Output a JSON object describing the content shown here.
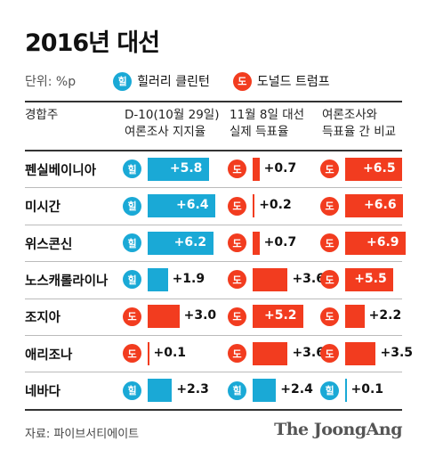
{
  "title": "2016년 대선",
  "unit_label": "단위: %p",
  "legend": [
    {
      "badge": "힐",
      "label": "힐러리 클린턴",
      "color": "#1aa9d6"
    },
    {
      "badge": "도",
      "label": "도널드 트럼프",
      "color": "#f23c1f"
    }
  ],
  "row_header": "경합주",
  "column_headers": [
    "D-10(10월 29일)\n여론조사 지지율",
    "11월 8일 대선\n실제 득표율",
    "여론조사와\n득표율 간 비교"
  ],
  "source": "자료: 파이브서티에이트",
  "logo": "The JoongAng",
  "colors": {
    "clinton": "#1aa9d6",
    "trump": "#f23c1f"
  },
  "chart_data": {
    "type": "table",
    "rows": [
      {
        "state": "펜실베이니아",
        "cells": [
          {
            "leader": "힐",
            "value": 5.8,
            "label": "+5.8"
          },
          {
            "leader": "도",
            "value": 0.7,
            "label": "+0.7"
          },
          {
            "leader": "도",
            "value": 6.5,
            "label": "+6.5"
          }
        ]
      },
      {
        "state": "미시간",
        "cells": [
          {
            "leader": "힐",
            "value": 6.4,
            "label": "+6.4"
          },
          {
            "leader": "도",
            "value": 0.2,
            "label": "+0.2"
          },
          {
            "leader": "도",
            "value": 6.6,
            "label": "+6.6"
          }
        ]
      },
      {
        "state": "위스콘신",
        "cells": [
          {
            "leader": "힐",
            "value": 6.2,
            "label": "+6.2"
          },
          {
            "leader": "도",
            "value": 0.7,
            "label": "+0.7"
          },
          {
            "leader": "도",
            "value": 6.9,
            "label": "+6.9"
          }
        ]
      },
      {
        "state": "노스캐롤라이나",
        "cells": [
          {
            "leader": "힐",
            "value": 1.9,
            "label": "+1.9"
          },
          {
            "leader": "도",
            "value": 3.6,
            "label": "+3.6"
          },
          {
            "leader": "도",
            "value": 5.5,
            "label": "+5.5"
          }
        ]
      },
      {
        "state": "조지아",
        "cells": [
          {
            "leader": "도",
            "value": 3.0,
            "label": "+3.0"
          },
          {
            "leader": "도",
            "value": 5.2,
            "label": "+5.2"
          },
          {
            "leader": "도",
            "value": 2.2,
            "label": "+2.2"
          }
        ]
      },
      {
        "state": "애리조나",
        "cells": [
          {
            "leader": "도",
            "value": 0.1,
            "label": "+0.1"
          },
          {
            "leader": "도",
            "value": 3.6,
            "label": "+3.6"
          },
          {
            "leader": "도",
            "value": 3.5,
            "label": "+3.5"
          }
        ]
      },
      {
        "state": "네바다",
        "cells": [
          {
            "leader": "힐",
            "value": 2.3,
            "label": "+2.3"
          },
          {
            "leader": "힐",
            "value": 2.4,
            "label": "+2.4"
          },
          {
            "leader": "힐",
            "value": 0.1,
            "label": "+0.1"
          }
        ]
      }
    ]
  }
}
